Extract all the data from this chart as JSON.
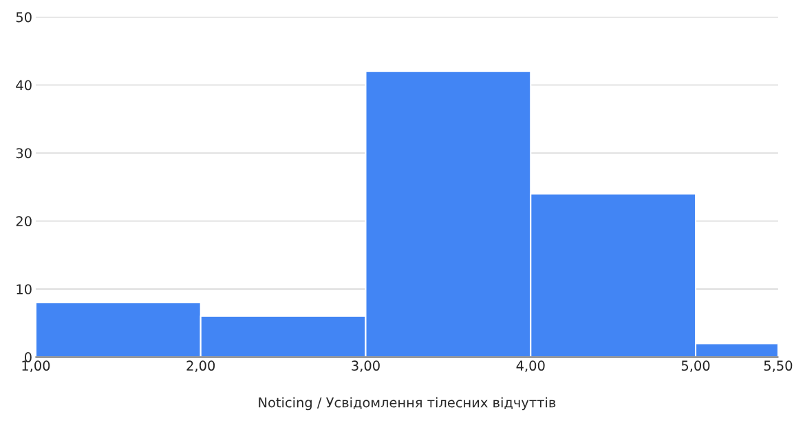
{
  "chart_data": {
    "type": "histogram",
    "xlabel": "Noticing / Усвідомлення тілесних відчуттів",
    "bins": [
      1,
      2,
      3,
      4,
      5,
      5.5
    ],
    "values": [
      8,
      6,
      42,
      24,
      2
    ],
    "color": "#4285f4",
    "xlim": [
      1,
      5.5
    ],
    "ylim": [
      0,
      50
    ],
    "yticks": [
      0,
      10,
      20,
      30,
      40,
      50
    ],
    "xticks": [
      {
        "value": 1,
        "label": "1,00"
      },
      {
        "value": 2,
        "label": "2,00"
      },
      {
        "value": 3,
        "label": "3,00"
      },
      {
        "value": 4,
        "label": "4,00"
      },
      {
        "value": 5,
        "label": "5,00"
      },
      {
        "value": 5.5,
        "label": "5,50"
      }
    ],
    "grid": "y",
    "legend": false
  }
}
